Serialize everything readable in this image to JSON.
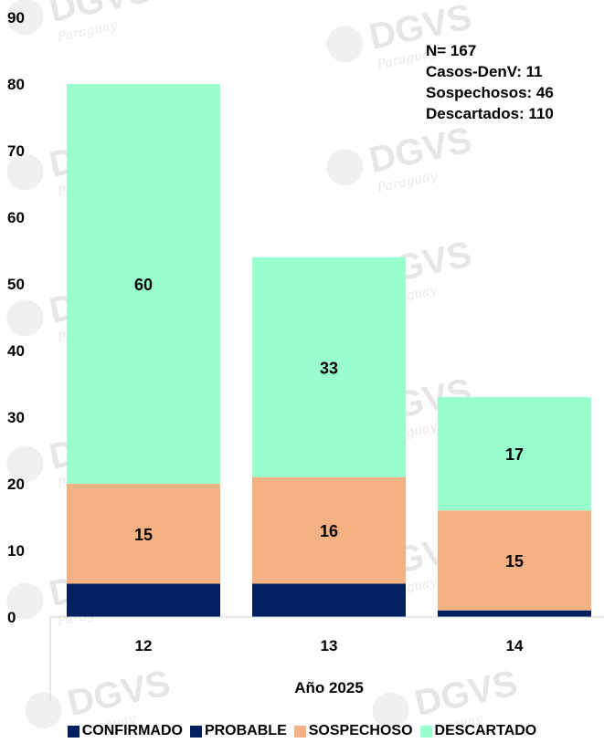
{
  "chart_data": {
    "type": "bar",
    "stacked": true,
    "categories": [
      "12",
      "13",
      "14"
    ],
    "xlabel": "Año 2025",
    "ylabel": "",
    "ylim": [
      0,
      90
    ],
    "yticks": [
      0,
      10,
      20,
      30,
      40,
      50,
      60,
      70,
      80,
      90
    ],
    "grid": false,
    "legend_position": "bottom",
    "series": [
      {
        "name": "CONFIRMADO",
        "values": [
          0,
          0,
          0
        ],
        "color": "#002060"
      },
      {
        "name": "PROBABLE",
        "values": [
          5,
          5,
          1
        ],
        "color": "#002060"
      },
      {
        "name": "SOSPECHOSO",
        "values": [
          15,
          16,
          15
        ],
        "color": "#f4b183"
      },
      {
        "name": "DESCARTADO",
        "values": [
          60,
          33,
          17
        ],
        "color": "#99ffcc"
      }
    ],
    "data_labels": {
      "SOSPECHOSO": [
        "15",
        "16",
        "15"
      ],
      "DESCARTADO": [
        "60",
        "33",
        "17"
      ]
    }
  },
  "summary": {
    "total": "N= 167",
    "casos": "Casos-DenV: 11",
    "sospechosos": "Sospechosos: 46",
    "descartados": "Descartados: 110"
  },
  "watermark": {
    "logo": "DGVS",
    "sub": "Paraguay"
  }
}
